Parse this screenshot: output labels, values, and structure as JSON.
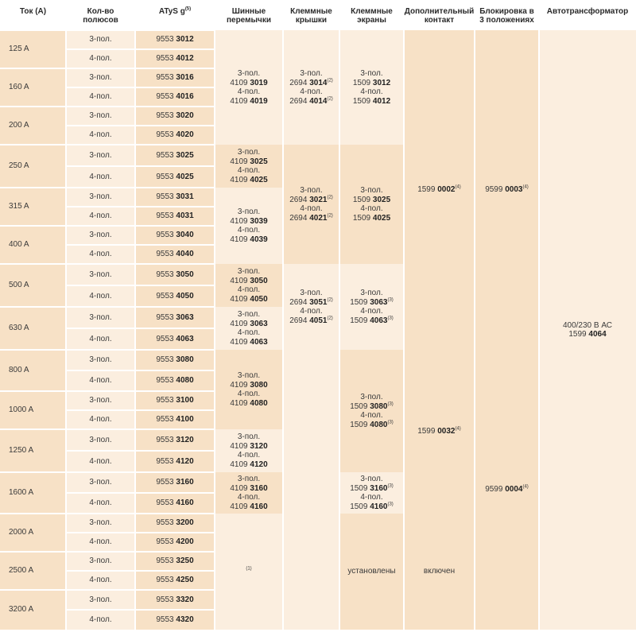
{
  "headers": {
    "current": "Ток (А)",
    "poles": "Кол-во полюсов",
    "atys": "ATyS g",
    "atys_fn": "(5)",
    "bus": "Шинные перемычки",
    "covers": "Клеммные крышки",
    "screens": "Клеммные экраны",
    "contact": "Дополнительный контакт",
    "lock": "Блокировка в 3 положениях",
    "transformer": "Автотрансформатор"
  },
  "rows": [
    {
      "current": "125 A",
      "poles": [
        "3-пол.",
        "4-пол."
      ],
      "refs": [
        [
          "9553 ",
          "3012"
        ],
        [
          "9553 ",
          "4012"
        ]
      ]
    },
    {
      "current": "160 A",
      "poles": [
        "3-пол.",
        "4-пол."
      ],
      "refs": [
        [
          "9553 ",
          "3016"
        ],
        [
          "9553 ",
          "4016"
        ]
      ]
    },
    {
      "current": "200 A",
      "poles": [
        "3-пол.",
        "4-пол."
      ],
      "refs": [
        [
          "9553 ",
          "3020"
        ],
        [
          "9553 ",
          "4020"
        ]
      ]
    },
    {
      "current": "250 A",
      "poles": [
        "3-пол.",
        "4-пол."
      ],
      "refs": [
        [
          "9553 ",
          "3025"
        ],
        [
          "9553 ",
          "4025"
        ]
      ]
    },
    {
      "current": "315 A",
      "poles": [
        "3-пол.",
        "4-пол."
      ],
      "refs": [
        [
          "9553 ",
          "3031"
        ],
        [
          "9553 ",
          "4031"
        ]
      ]
    },
    {
      "current": "400 A",
      "poles": [
        "3-пол.",
        "4-пол."
      ],
      "refs": [
        [
          "9553 ",
          "3040"
        ],
        [
          "9553 ",
          "4040"
        ]
      ]
    },
    {
      "current": "500 A",
      "poles": [
        "3-пол.",
        "4-пол."
      ],
      "refs": [
        [
          "9553 ",
          "3050"
        ],
        [
          "9553 ",
          "4050"
        ]
      ]
    },
    {
      "current": "630 A",
      "poles": [
        "3-пол.",
        "4-пол."
      ],
      "refs": [
        [
          "9553 ",
          "3063"
        ],
        [
          "9553 ",
          "4063"
        ]
      ]
    },
    {
      "current": "800 A",
      "poles": [
        "3-пол.",
        "4-пол."
      ],
      "refs": [
        [
          "9553 ",
          "3080"
        ],
        [
          "9553 ",
          "4080"
        ]
      ]
    },
    {
      "current": "1000 A",
      "poles": [
        "3-пол.",
        "4-пол."
      ],
      "refs": [
        [
          "9553 ",
          "3100"
        ],
        [
          "9553 ",
          "4100"
        ]
      ]
    },
    {
      "current": "1250 A",
      "poles": [
        "3-пол.",
        "4-пол."
      ],
      "refs": [
        [
          "9553 ",
          "3120"
        ],
        [
          "9553 ",
          "4120"
        ]
      ]
    },
    {
      "current": "1600 A",
      "poles": [
        "3-пол.",
        "4-пол."
      ],
      "refs": [
        [
          "9553 ",
          "3160"
        ],
        [
          "9553 ",
          "4160"
        ]
      ]
    },
    {
      "current": "2000 A",
      "poles": [
        "3-пол.",
        "4-пол."
      ],
      "refs": [
        [
          "9553 ",
          "3200"
        ],
        [
          "9553 ",
          "4200"
        ]
      ]
    },
    {
      "current": "2500 A",
      "poles": [
        "3-пол.",
        "4-пол."
      ],
      "refs": [
        [
          "9553 ",
          "3250"
        ],
        [
          "9553 ",
          "4250"
        ]
      ]
    },
    {
      "current": "3200 A",
      "poles": [
        "3-пол.",
        "4-пол."
      ],
      "refs": [
        [
          "9553 ",
          "3320"
        ],
        [
          "9553 ",
          "4320"
        ]
      ]
    }
  ],
  "bus_bars": [
    {
      "lines": [
        [
          "3-пол."
        ],
        [
          "4109 ",
          "3019"
        ],
        [
          "4-пол."
        ],
        [
          "4109 ",
          "4019"
        ]
      ]
    },
    {
      "lines": [
        [
          "3-пол."
        ],
        [
          "4109 ",
          "3025"
        ],
        [
          "4-пол."
        ],
        [
          "4109 ",
          "4025"
        ]
      ]
    },
    {
      "lines": [
        [
          "3-пол."
        ],
        [
          "4109 ",
          "3039"
        ],
        [
          "4-пол."
        ],
        [
          "4109 ",
          "4039"
        ]
      ]
    },
    {
      "lines": [
        [
          "3-пол."
        ],
        [
          "4109 ",
          "3050"
        ],
        [
          "4-пол."
        ],
        [
          "4109 ",
          "4050"
        ]
      ]
    },
    {
      "lines": [
        [
          "3-пол."
        ],
        [
          "4109 ",
          "3063"
        ],
        [
          "4-пол."
        ],
        [
          "4109 ",
          "4063"
        ]
      ]
    },
    {
      "lines": [
        [
          "3-пол."
        ],
        [
          "4109 ",
          "3080"
        ],
        [
          "4-пол."
        ],
        [
          "4109 ",
          "4080"
        ]
      ]
    },
    {
      "lines": [
        [
          "3-пол."
        ],
        [
          "4109 ",
          "3120"
        ],
        [
          "4-пол."
        ],
        [
          "4109 ",
          "4120"
        ]
      ]
    },
    {
      "lines": [
        [
          "3-пол."
        ],
        [
          "4109 ",
          "3160"
        ],
        [
          "4-пол."
        ],
        [
          "4109 ",
          "4160"
        ]
      ]
    },
    {
      "lines": [
        [
          "",
          "",
          "(1)"
        ]
      ]
    }
  ],
  "covers": [
    {
      "lines": [
        [
          "3-пол."
        ],
        [
          "2694 ",
          "3014",
          "(2)"
        ],
        [
          "4-пол."
        ],
        [
          "2694 ",
          "4014",
          "(2)"
        ]
      ]
    },
    {
      "lines": [
        [
          "3-пол."
        ],
        [
          "2694 ",
          "3021",
          "(2)"
        ],
        [
          "4-пол."
        ],
        [
          "2694 ",
          "4021",
          "(2)"
        ]
      ]
    },
    {
      "lines": [
        [
          "3-пол."
        ],
        [
          "2694 ",
          "3051",
          "(2)"
        ],
        [
          "4-пол."
        ],
        [
          "2694 ",
          "4051",
          "(2)"
        ]
      ]
    },
    {
      "lines": []
    }
  ],
  "screens": [
    {
      "lines": [
        [
          "3-пол."
        ],
        [
          "1509 ",
          "3012"
        ],
        [
          "4-пол."
        ],
        [
          "1509 ",
          "4012"
        ]
      ]
    },
    {
      "lines": [
        [
          "3-пол."
        ],
        [
          "1509 ",
          "3025"
        ],
        [
          "4-пол."
        ],
        [
          "1509 ",
          "4025"
        ]
      ]
    },
    {
      "lines": [
        [
          "3-пол."
        ],
        [
          "1509 ",
          "3063",
          "(3)"
        ],
        [
          "4-пол."
        ],
        [
          "1509 ",
          "4063",
          "(3)"
        ]
      ]
    },
    {
      "lines": [
        [
          "3-пол."
        ],
        [
          "1509 ",
          "3080",
          "(3)"
        ],
        [
          "4-пол."
        ],
        [
          "1509 ",
          "4080",
          "(3)"
        ]
      ]
    },
    {
      "lines": [
        [
          "3-пол."
        ],
        [
          "1509 ",
          "3160",
          "(3)"
        ],
        [
          "4-пол."
        ],
        [
          "1509 ",
          "4160",
          "(3)"
        ]
      ]
    },
    {
      "lines": [
        [
          "установлены"
        ]
      ]
    }
  ],
  "contact": [
    {
      "lines": [
        [
          "1599 ",
          "0002",
          "(4)"
        ]
      ]
    },
    {
      "lines": [
        [
          "1599 ",
          "0032",
          "(4)"
        ]
      ]
    },
    {
      "lines": [
        [
          "включен"
        ]
      ]
    }
  ],
  "lock": [
    {
      "lines": [
        [
          "9599 ",
          "0003",
          "(4)"
        ]
      ]
    },
    {
      "lines": [
        [
          "9599 ",
          "0004",
          "(4)"
        ]
      ]
    }
  ],
  "transformer": [
    {
      "lines": [
        [
          "400/230 В АС"
        ],
        [
          "1599 ",
          "4064"
        ]
      ]
    }
  ],
  "colors": {
    "current_col": "#f7e1c6",
    "light": "#fbeedf",
    "white": "#ffffff",
    "text": "#3a3a3a"
  }
}
